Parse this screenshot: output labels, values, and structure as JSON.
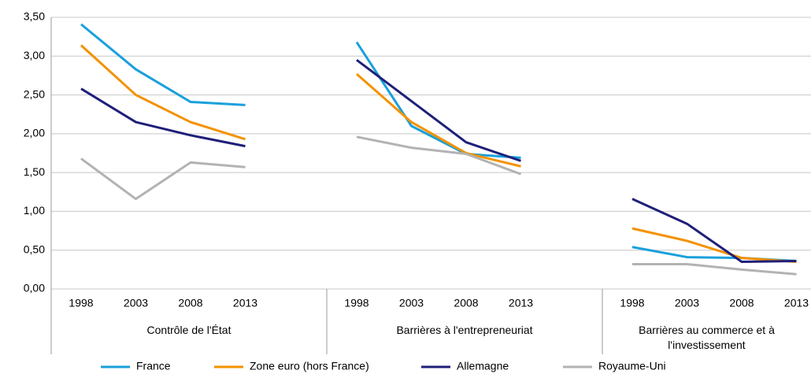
{
  "chart_data": {
    "type": "line",
    "ylim": [
      0,
      3.5
    ],
    "yticks": [
      {
        "value": 0,
        "label": "0,00"
      },
      {
        "value": 0.5,
        "label": "0,50"
      },
      {
        "value": 1,
        "label": "1,00"
      },
      {
        "value": 1.5,
        "label": "1,50"
      },
      {
        "value": 2,
        "label": "2,00"
      },
      {
        "value": 2.5,
        "label": "2,50"
      },
      {
        "value": 3,
        "label": "3,00"
      },
      {
        "value": 3.5,
        "label": "3,50"
      }
    ],
    "grid": true,
    "groups": [
      {
        "label": "Contrôle de l'État",
        "categories": [
          "1998",
          "2003",
          "2008",
          "2013"
        ]
      },
      {
        "label": "Barrières à l'entrepreneuriat",
        "categories": [
          "1998",
          "2003",
          "2008",
          "2013"
        ]
      },
      {
        "label": "Barrières au commerce et à l'investissement",
        "categories": [
          "1998",
          "2003",
          "2008",
          "2013"
        ]
      }
    ],
    "series": [
      {
        "name": "France",
        "color": "#1aa0dc",
        "values": [
          [
            3.41,
            2.83,
            2.41,
            2.37
          ],
          [
            3.18,
            2.1,
            1.74,
            1.69
          ],
          [
            0.54,
            0.41,
            0.4,
            0.36
          ]
        ]
      },
      {
        "name": "Zone euro (hors France)",
        "color": "#f39200",
        "values": [
          [
            3.14,
            2.5,
            2.15,
            1.93
          ],
          [
            2.77,
            2.15,
            1.75,
            1.58
          ],
          [
            0.78,
            0.62,
            0.4,
            0.35
          ]
        ]
      },
      {
        "name": "Allemagne",
        "color": "#1f1f7a",
        "values": [
          [
            2.58,
            2.15,
            1.98,
            1.84
          ],
          [
            2.95,
            2.42,
            1.89,
            1.65
          ],
          [
            1.16,
            0.84,
            0.35,
            0.36
          ]
        ]
      },
      {
        "name": "Royaume-Uni",
        "color": "#b3b3b3",
        "values": [
          [
            1.68,
            1.16,
            1.63,
            1.57
          ],
          [
            1.96,
            1.82,
            1.74,
            1.48
          ],
          [
            0.32,
            0.32,
            0.25,
            0.19
          ]
        ]
      }
    ]
  }
}
